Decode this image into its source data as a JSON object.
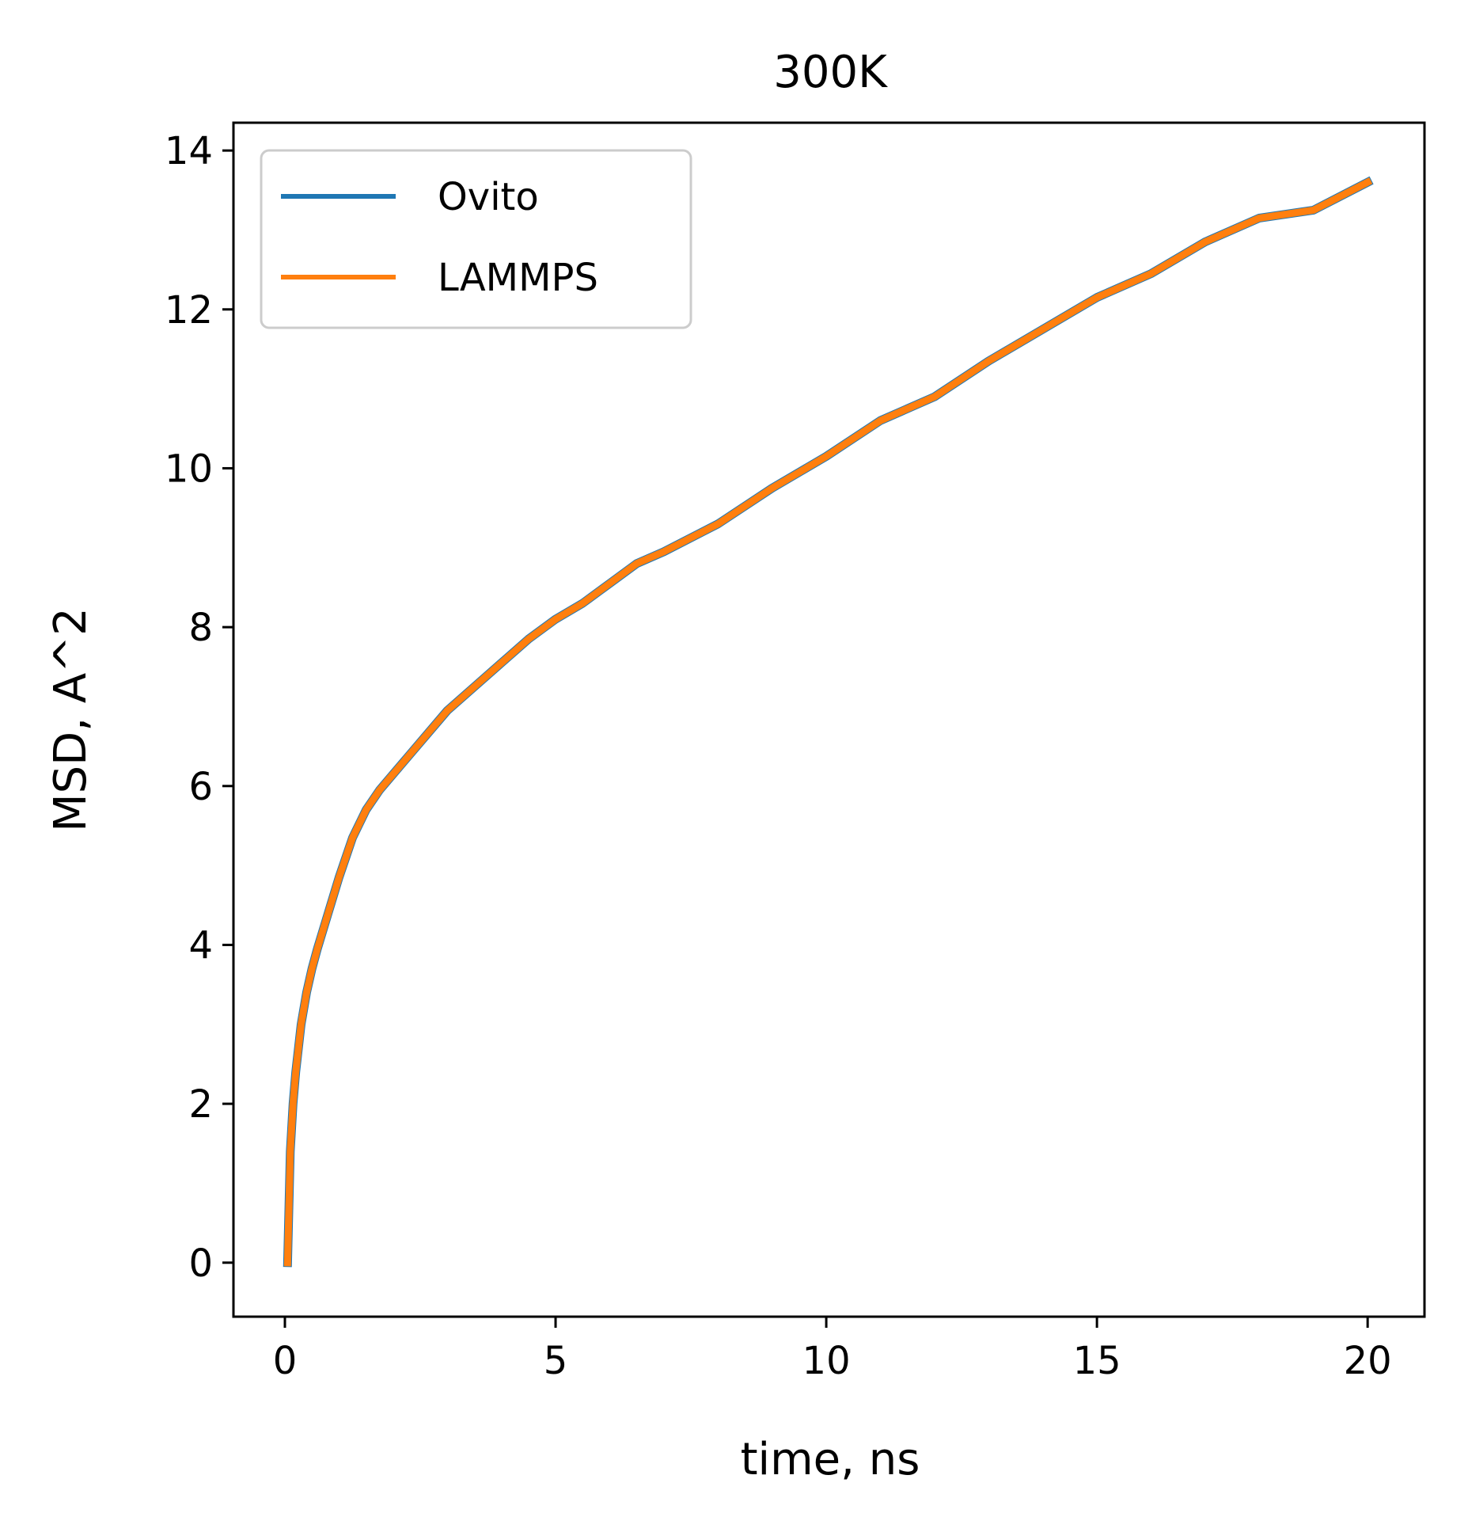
{
  "chart_data": {
    "type": "line",
    "title": "300K",
    "xlabel": "time, ns",
    "ylabel": "MSD, A^2",
    "xlim": [
      -0.95,
      21.05
    ],
    "ylim": [
      -0.68,
      14.35
    ],
    "xticks": [
      0,
      5,
      10,
      15,
      20
    ],
    "yticks": [
      0,
      2,
      4,
      6,
      8,
      10,
      12,
      14
    ],
    "xtick_labels": [
      "0",
      "5",
      "10",
      "15",
      "20"
    ],
    "ytick_labels": [
      "0",
      "2",
      "4",
      "6",
      "8",
      "10",
      "12",
      "14"
    ],
    "grid": false,
    "legend": {
      "position": "top-left"
    },
    "x": [
      0.05,
      0.1,
      0.15,
      0.2,
      0.3,
      0.4,
      0.5,
      0.6,
      0.8,
      1.0,
      1.25,
      1.5,
      1.75,
      2.0,
      2.5,
      3.0,
      3.5,
      4.0,
      4.5,
      5.0,
      5.5,
      6.0,
      6.5,
      7.0,
      8.0,
      9.0,
      10.0,
      11.0,
      12.0,
      13.0,
      14.0,
      15.0,
      16.0,
      17.0,
      18.0,
      19.0,
      20.0
    ],
    "series": [
      {
        "name": "Ovito",
        "color": "#1f77b4",
        "values": [
          0.0,
          1.4,
          2.0,
          2.4,
          3.0,
          3.4,
          3.7,
          3.95,
          4.4,
          4.85,
          5.35,
          5.7,
          5.95,
          6.15,
          6.55,
          6.95,
          7.25,
          7.55,
          7.85,
          8.1,
          8.3,
          8.55,
          8.8,
          8.95,
          9.3,
          9.75,
          10.15,
          10.6,
          10.9,
          11.35,
          11.75,
          12.15,
          12.45,
          12.85,
          13.15,
          13.25,
          13.6
        ]
      },
      {
        "name": "LAMMPS",
        "color": "#ff7f0e",
        "values": [
          0.0,
          1.4,
          2.0,
          2.4,
          3.0,
          3.4,
          3.7,
          3.95,
          4.4,
          4.85,
          5.35,
          5.7,
          5.95,
          6.15,
          6.55,
          6.95,
          7.25,
          7.55,
          7.85,
          8.1,
          8.3,
          8.55,
          8.8,
          8.95,
          9.3,
          9.75,
          10.15,
          10.6,
          10.9,
          11.35,
          11.75,
          12.15,
          12.45,
          12.85,
          13.15,
          13.25,
          13.6
        ]
      }
    ]
  }
}
